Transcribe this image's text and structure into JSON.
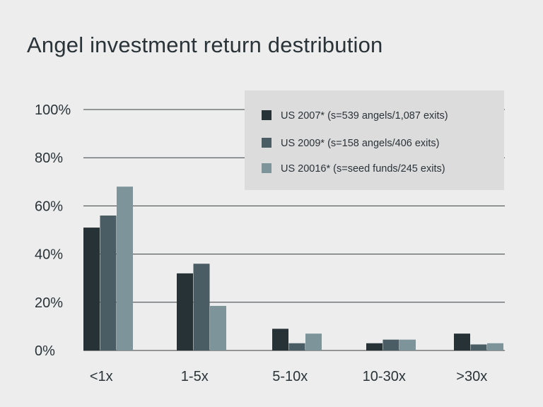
{
  "title": "Angel investment return destribution",
  "chart_data": {
    "type": "bar",
    "title": "Angel investment return destribution",
    "xlabel": "",
    "ylabel": "",
    "categories": [
      "<1x",
      "1-5x",
      "5-10x",
      "10-30x",
      ">30x"
    ],
    "series": [
      {
        "name": "US 2007* (s=539 angels/1,087 exits)",
        "color": "#273237",
        "values": [
          51,
          32,
          9,
          3,
          7
        ]
      },
      {
        "name": "US 2009* (s=158 angels/406 exits)",
        "color": "#4a5d65",
        "values": [
          56,
          36,
          3,
          4.5,
          2.5
        ]
      },
      {
        "name": "US 20016* (s=seed funds/245 exits)",
        "color": "#7e949b",
        "values": [
          68,
          18.5,
          7,
          4.5,
          3
        ]
      }
    ],
    "ylim": [
      0,
      100
    ],
    "yticks": [
      0,
      20,
      40,
      60,
      80,
      100
    ],
    "ytick_labels": [
      "0%",
      "20%",
      "40%",
      "60%",
      "80%",
      "100%"
    ],
    "grid": true,
    "legend_position": "top-right",
    "legend_background": "#dcdcdc",
    "gridline_color": "#3a3f42"
  }
}
